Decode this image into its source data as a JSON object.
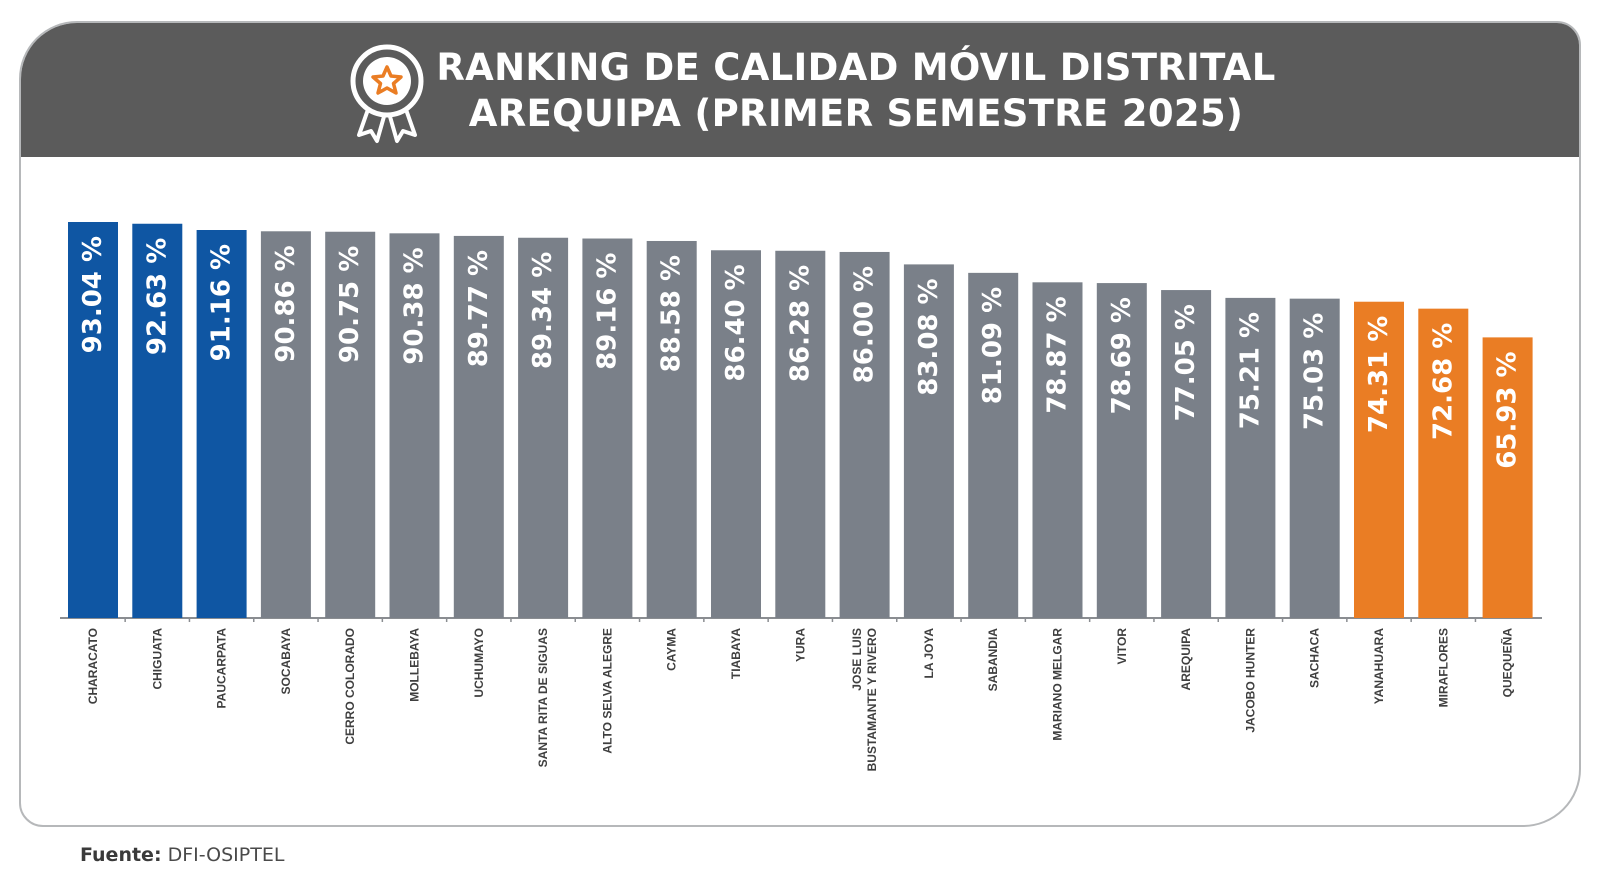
{
  "title": {
    "line1": "RANKING DE CALIDAD MÓVIL DISTRITAL",
    "line2": "AREQUIPA (PRIMER SEMESTRE 2025)"
  },
  "icons": {
    "header": "medal-icon"
  },
  "colors": {
    "top": "#0f56a3",
    "middle": "#7a8089",
    "bottom": "#ea7d24",
    "header": "#5b5b5b"
  },
  "chart_data": {
    "type": "bar",
    "title": "RANKING DE CALIDAD MÓVIL DISTRITAL AREQUIPA (PRIMER SEMESTRE 2025)",
    "xlabel": "",
    "ylabel": "",
    "ylim": [
      0,
      100
    ],
    "grid": false,
    "categories": [
      "CHARACATO",
      "CHIGUATA",
      "PAUCARPATA",
      "SOCABAYA",
      "CERRO COLORADO",
      "MOLLEBAYA",
      "UCHUMAYO",
      "SANTA RITA DE SIGUAS",
      "ALTO SELVA ALEGRE",
      "CAYMA",
      "TIABAYA",
      "YURA",
      "JOSE LUIS BUSTAMANTE Y RIVERO",
      "LA JOYA",
      "SABANDIA",
      "MARIANO MELGAR",
      "VITOR",
      "AREQUIPA",
      "JACOBO HUNTER",
      "SACHACA",
      "YANAHUARA",
      "MIRAFLORES",
      "QUEQUEÑA"
    ],
    "category_lines": [
      [
        "CHARACATO"
      ],
      [
        "CHIGUATA"
      ],
      [
        "PAUCARPATA"
      ],
      [
        "SOCABAYA"
      ],
      [
        "CERRO COLORADO"
      ],
      [
        "MOLLEBAYA"
      ],
      [
        "UCHUMAYO"
      ],
      [
        "SANTA RITA DE SIGUAS"
      ],
      [
        "ALTO SELVA ALEGRE"
      ],
      [
        "CAYMA"
      ],
      [
        "TIABAYA"
      ],
      [
        "YURA"
      ],
      [
        "JOSE LUIS",
        "BUSTAMANTE Y RIVERO"
      ],
      [
        "LA JOYA"
      ],
      [
        "SABANDIA"
      ],
      [
        "MARIANO MELGAR"
      ],
      [
        "VITOR"
      ],
      [
        "AREQUIPA"
      ],
      [
        "JACOBO HUNTER"
      ],
      [
        "SACHACA"
      ],
      [
        "YANAHUARA"
      ],
      [
        "MIRAFLORES"
      ],
      [
        "QUEQUEÑA"
      ]
    ],
    "values": [
      93.04,
      92.63,
      91.16,
      90.86,
      90.75,
      90.38,
      89.77,
      89.34,
      89.16,
      88.58,
      86.4,
      86.28,
      86.0,
      83.08,
      81.09,
      78.87,
      78.69,
      77.05,
      75.21,
      75.03,
      74.31,
      72.68,
      65.93
    ],
    "labels": [
      "93.04 %",
      "92.63 %",
      "91.16 %",
      "90.86 %",
      "90.75 %",
      "90.38 %",
      "89.77 %",
      "89.34 %",
      "89.16 %",
      "88.58 %",
      "86.40 %",
      "86.28 %",
      "86.00 %",
      "83.08 %",
      "81.09 %",
      "78.87 %",
      "78.69 %",
      "77.05 %",
      "75.21 %",
      "75.03 %",
      "74.31 %",
      "72.68 %",
      "65.93 %"
    ],
    "groups": [
      "top",
      "top",
      "top",
      "middle",
      "middle",
      "middle",
      "middle",
      "middle",
      "middle",
      "middle",
      "middle",
      "middle",
      "middle",
      "middle",
      "middle",
      "middle",
      "middle",
      "middle",
      "middle",
      "middle",
      "bottom",
      "bottom",
      "bottom"
    ]
  },
  "source": {
    "label": "Fuente:",
    "value": "DFI-OSIPTEL"
  }
}
